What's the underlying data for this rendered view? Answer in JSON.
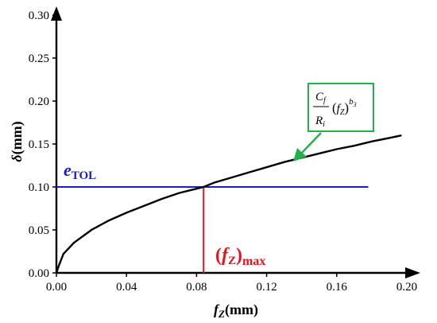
{
  "chart_data": {
    "type": "line",
    "xlabel": {
      "symbol": "f",
      "sub": "Z",
      "unit": "(mm)"
    },
    "ylabel": {
      "symbol": "δ",
      "unit": "(mm)"
    },
    "xlim": [
      0,
      0.2
    ],
    "ylim": [
      0,
      0.3
    ],
    "xticks": [
      "0.00",
      "0.04",
      "0.08",
      "0.12",
      "0.16",
      "0.20"
    ],
    "yticks": [
      "0.00",
      "0.05",
      "0.10",
      "0.15",
      "0.20",
      "0.25",
      "0.30"
    ],
    "grid": false,
    "series": [
      {
        "x": [
          0,
          0.0015,
          0.004,
          0.01,
          0.02,
          0.03,
          0.04,
          0.05,
          0.06,
          0.07,
          0.08,
          0.084,
          0.09,
          0.1,
          0.11,
          0.12,
          0.13,
          0.14,
          0.15,
          0.16,
          0.17,
          0.18,
          0.19,
          0.197
        ],
        "values": [
          0,
          0.009,
          0.022,
          0.035,
          0.05,
          0.061,
          0.07,
          0.078,
          0.086,
          0.093,
          0.098,
          0.1,
          0.105,
          0.111,
          0.117,
          0.123,
          0.129,
          0.134,
          0.139,
          0.144,
          0.148,
          0.153,
          0.157,
          0.16
        ],
        "color": "#000000"
      }
    ],
    "reference_lines": [
      {
        "orientation": "horizontal",
        "value": 0.1,
        "x_extent": [
          0,
          0.178
        ],
        "color": "#1c1cc7",
        "label": {
          "symbol": "e",
          "sub": "TOL"
        }
      },
      {
        "orientation": "vertical",
        "value": 0.084,
        "y_extent": [
          0,
          0.1
        ],
        "color": "#e8141c",
        "label": {
          "open": "(",
          "symbol": "f",
          "sub": "Z",
          "close": ")",
          "suffix": "max"
        }
      }
    ],
    "annotation": {
      "formula": {
        "numerator": "C",
        "numerator_sub": "f",
        "denominator": "R",
        "denominator_sub": "i",
        "factor_open": "(",
        "factor": "f",
        "factor_sub": "Z",
        "factor_close": ")",
        "exponent": "b",
        "exponent_sub": "3"
      },
      "points_to": {
        "x": 0.129,
        "y": 0.129
      },
      "box_color": "#22b14c",
      "arrow_color": "#22b14c"
    }
  }
}
